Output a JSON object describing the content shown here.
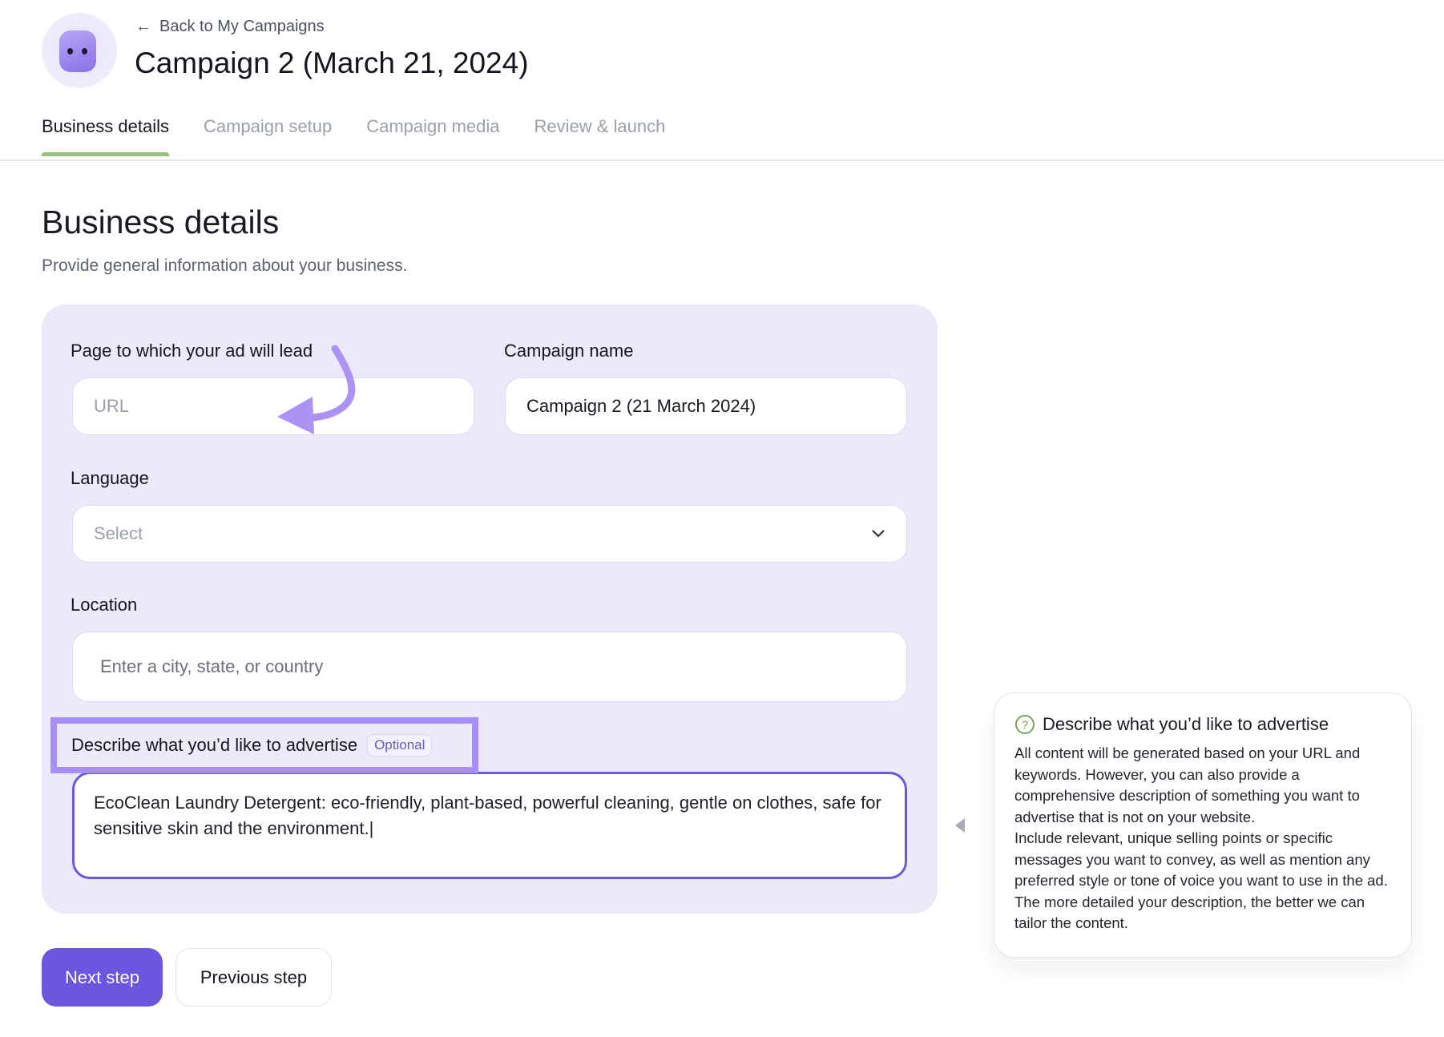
{
  "header": {
    "back_label": "Back to My Campaigns",
    "title": "Campaign 2 (March 21, 2024)"
  },
  "tabs": [
    {
      "label": "Business details",
      "active": true
    },
    {
      "label": "Campaign setup"
    },
    {
      "label": "Campaign media"
    },
    {
      "label": "Review & launch"
    }
  ],
  "section": {
    "title": "Business details",
    "subtitle": "Provide general information about your business."
  },
  "form": {
    "url": {
      "label": "Page to which your ad will lead",
      "placeholder": "URL",
      "value": ""
    },
    "campaign_name": {
      "label": "Campaign name",
      "value": "Campaign 2 (21 March 2024)"
    },
    "language": {
      "label": "Language",
      "placeholder": "Select"
    },
    "location": {
      "label": "Location",
      "placeholder": "Enter a city, state, or country"
    },
    "description": {
      "label": "Describe what you’d like to advertise",
      "badge": "Optional",
      "value": "EcoClean Laundry Detergent: eco-friendly, plant-based, powerful cleaning, gentle on clothes, safe for sensitive skin and the environment.|"
    }
  },
  "buttons": {
    "next": "Next step",
    "previous": "Previous step"
  },
  "help": {
    "title": "Describe what you’d like to advertise",
    "body": "All content will be generated based on your URL and keywords. However, you can also provide a comprehensive description of something you want to advertise that is not on your website.\nInclude relevant, unique selling points or specific messages you want to convey, as well as mention any preferred style or tone of voice you want to use in the ad. The more detailed your description, the better we can tailor the content."
  },
  "colors": {
    "accent": "#6b56e0",
    "panel": "#ece9fb",
    "tab_indicator": "#9bbf80",
    "highlight": "#a88ff5",
    "help_icon": "#7aa35c"
  }
}
